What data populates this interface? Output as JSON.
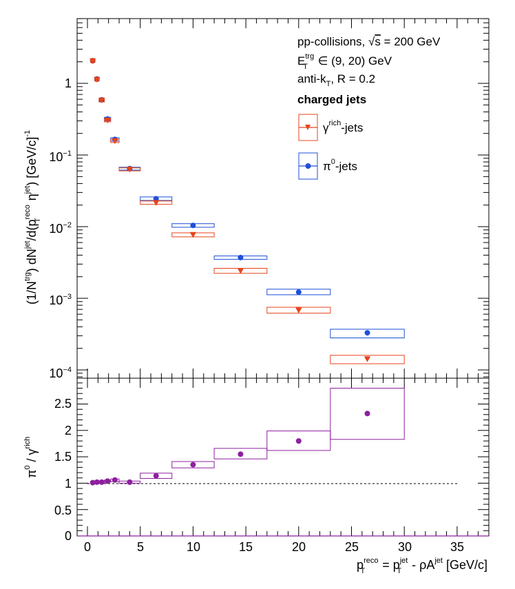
{
  "chart_data": [
    {
      "type": "scatter",
      "panel": "top",
      "ylabel": "(1/N^{trg}) dN^{jet}/d(p_{T}^{reco} η^{jet}) [GeV/c]^{-1}",
      "ylog": true,
      "xlim": [
        -1,
        38
      ],
      "ylim": [
        8e-05,
        5
      ],
      "y_tick_labels": [
        "10^-4",
        "10^-3",
        "10^-2",
        "10^-1",
        "1"
      ],
      "legend_placement": "top-right",
      "annotations": [
        "pp-collisions, √s = 200 GeV",
        "E_T^trg ∈ (9, 20) GeV",
        "anti-k_T, R = 0.2",
        "charged jets"
      ],
      "series": [
        {
          "name": "γ^rich-jets",
          "color": "#e8431b",
          "marker": "triangle-down",
          "x": [
            0.5,
            0.9,
            1.35,
            1.9,
            2.6,
            4.0,
            6.5,
            10.0,
            14.5,
            20.0,
            26.5
          ],
          "xlo": [
            0.3,
            0.7,
            1.1,
            1.6,
            2.2,
            3.0,
            5.0,
            8.0,
            12.0,
            17.0,
            23.0
          ],
          "xhi": [
            0.7,
            1.1,
            1.6,
            2.2,
            3.0,
            5.0,
            8.0,
            12.0,
            17.0,
            23.0,
            30.0
          ],
          "values": [
            2.05,
            1.13,
            0.58,
            0.305,
            0.157,
            0.063,
            0.0215,
            0.0077,
            0.00242,
            0.00068,
            0.000142
          ],
          "sys_lo": [
            1.95,
            1.07,
            0.55,
            0.29,
            0.149,
            0.06,
            0.0205,
            0.0072,
            0.00223,
            0.00062,
            0.000122
          ],
          "sys_hi": [
            2.15,
            1.19,
            0.61,
            0.32,
            0.165,
            0.066,
            0.0228,
            0.0082,
            0.00262,
            0.00075,
            0.00016
          ]
        },
        {
          "name": "π^0-jets",
          "color": "#1e4fd8",
          "marker": "circle",
          "x": [
            0.5,
            0.9,
            1.35,
            1.9,
            2.6,
            4.0,
            6.5,
            10.0,
            14.5,
            20.0,
            26.5
          ],
          "xlo": [
            0.3,
            0.7,
            1.1,
            1.6,
            2.2,
            3.0,
            5.0,
            8.0,
            12.0,
            17.0,
            23.0
          ],
          "xhi": [
            0.7,
            1.1,
            1.6,
            2.2,
            3.0,
            5.0,
            8.0,
            12.0,
            17.0,
            23.0,
            30.0
          ],
          "values": [
            2.07,
            1.15,
            0.59,
            0.318,
            0.165,
            0.0645,
            0.0245,
            0.0104,
            0.0037,
            0.00122,
            0.00033
          ],
          "sys_lo": [
            1.97,
            1.09,
            0.56,
            0.3,
            0.156,
            0.0615,
            0.0232,
            0.0098,
            0.0035,
            0.00112,
            0.00028
          ],
          "sys_hi": [
            2.17,
            1.21,
            0.62,
            0.336,
            0.174,
            0.0675,
            0.026,
            0.011,
            0.0039,
            0.00134,
            0.00037
          ]
        }
      ]
    },
    {
      "type": "scatter",
      "panel": "bottom",
      "xlabel": "p_{T}^{reco} = p_{T}^{jet} - ρA^{jet} [GeV/c]",
      "ylabel": "π^0 / γ^rich",
      "xlim": [
        -1,
        38
      ],
      "ylim": [
        0,
        2.9
      ],
      "x_tick_labels": [
        "0",
        "5",
        "10",
        "15",
        "20",
        "25",
        "30",
        "35"
      ],
      "y_tick_labels": [
        "0",
        "0.5",
        "1",
        "1.5",
        "2",
        "2.5"
      ],
      "reference_line": 1,
      "series": [
        {
          "name": "",
          "color": "#8e1fa0",
          "marker": "circle",
          "x": [
            0.5,
            0.9,
            1.35,
            1.9,
            2.6,
            4.0,
            6.5,
            10.0,
            14.5,
            20.0,
            26.5
          ],
          "xlo": [
            0.3,
            0.7,
            1.1,
            1.6,
            2.2,
            3.0,
            5.0,
            8.0,
            12.0,
            17.0,
            23.0
          ],
          "xhi": [
            0.7,
            1.1,
            1.6,
            2.2,
            3.0,
            5.0,
            8.0,
            12.0,
            17.0,
            23.0,
            30.0
          ],
          "values": [
            1.01,
            1.02,
            1.02,
            1.04,
            1.06,
            1.02,
            1.14,
            1.35,
            1.55,
            1.8,
            2.32
          ],
          "sys_lo": [
            0.99,
            1.0,
            1.0,
            1.02,
            1.03,
            1.0,
            1.09,
            1.29,
            1.46,
            1.62,
            1.83
          ],
          "sys_hi": [
            1.03,
            1.04,
            1.04,
            1.06,
            1.08,
            1.04,
            1.19,
            1.41,
            1.66,
            1.99,
            2.8
          ]
        }
      ]
    }
  ]
}
